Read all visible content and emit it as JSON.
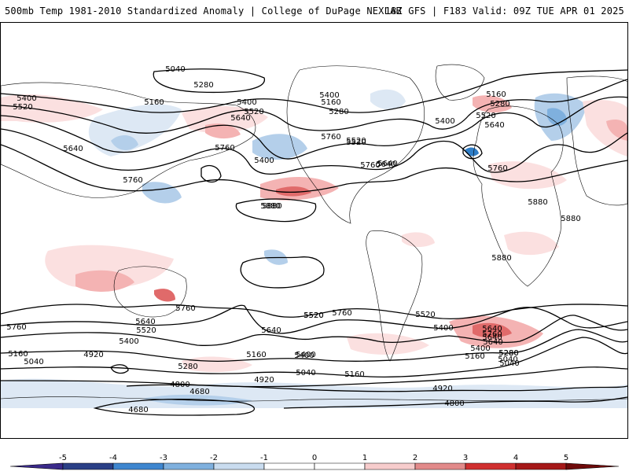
{
  "header": {
    "left_title": "500mb Temp 1981-2010 Standardized Anomaly | College of DuPage NEXLAB",
    "right_title": "18Z GFS | F183 Valid: 09Z TUE APR 01 2025"
  },
  "colors": {
    "warm1": "#fbe0e0",
    "warm2": "#f4b3b3",
    "warm3": "#e06a6a",
    "warm4": "#c81e1e",
    "cold1": "#dde8f4",
    "cold2": "#b4cfea",
    "cold3": "#7fb0de",
    "cold4": "#2f7ec8",
    "contour": "#000000",
    "land_border": "#000000"
  },
  "contour_labels": [
    {
      "text": "5040"
    },
    {
      "text": "5160"
    },
    {
      "text": "5280"
    },
    {
      "text": "5400"
    },
    {
      "text": "5520"
    },
    {
      "text": "5640"
    },
    {
      "text": "5760"
    },
    {
      "text": "5880"
    },
    {
      "text": "5160"
    },
    {
      "text": "5280"
    },
    {
      "text": "5520"
    },
    {
      "text": "5640"
    },
    {
      "text": "5400"
    },
    {
      "text": "5520"
    },
    {
      "text": "5640"
    },
    {
      "text": "5400"
    },
    {
      "text": "5760"
    },
    {
      "text": "5520"
    },
    {
      "text": "5640"
    },
    {
      "text": "5760"
    },
    {
      "text": "5400"
    },
    {
      "text": "5280"
    },
    {
      "text": "5160"
    },
    {
      "text": "5400"
    },
    {
      "text": "5520"
    },
    {
      "text": "5640"
    },
    {
      "text": "5760"
    },
    {
      "text": "5880"
    },
    {
      "text": "5880"
    },
    {
      "text": "5880"
    },
    {
      "text": "5880"
    },
    {
      "text": "5760"
    },
    {
      "text": "5640"
    },
    {
      "text": "5520"
    },
    {
      "text": "5400"
    },
    {
      "text": "5160"
    },
    {
      "text": "5040"
    },
    {
      "text": "4920"
    },
    {
      "text": "5760"
    },
    {
      "text": "5640"
    },
    {
      "text": "5520"
    },
    {
      "text": "5760"
    },
    {
      "text": "5640"
    },
    {
      "text": "5400"
    },
    {
      "text": "5280"
    },
    {
      "text": "5160"
    },
    {
      "text": "5040"
    },
    {
      "text": "5160"
    },
    {
      "text": "5400"
    },
    {
      "text": "5040"
    },
    {
      "text": "4920"
    },
    {
      "text": "4800"
    },
    {
      "text": "4680"
    },
    {
      "text": "4680"
    },
    {
      "text": "4920"
    },
    {
      "text": "4800"
    },
    {
      "text": "5520"
    },
    {
      "text": "5760"
    },
    {
      "text": "5640"
    },
    {
      "text": "5400"
    },
    {
      "text": "5280"
    },
    {
      "text": "5160"
    },
    {
      "text": "5040"
    },
    {
      "text": "5760"
    },
    {
      "text": "5640"
    },
    {
      "text": "5520"
    },
    {
      "text": "5400"
    },
    {
      "text": "5280"
    }
  ],
  "colorbar": {
    "ticks": [
      "-5",
      "-4",
      "-3",
      "-2",
      "-1",
      "0",
      "1",
      "2",
      "3",
      "4",
      "5"
    ],
    "colors": [
      "#3a2a8a",
      "#2a3f86",
      "#3e86cf",
      "#7fb0de",
      "#c9dcef",
      "#ffffff",
      "#ffffff",
      "#f7cccc",
      "#e28a8a",
      "#d03030",
      "#a51818",
      "#6e0a0a",
      "#f0b400"
    ]
  }
}
